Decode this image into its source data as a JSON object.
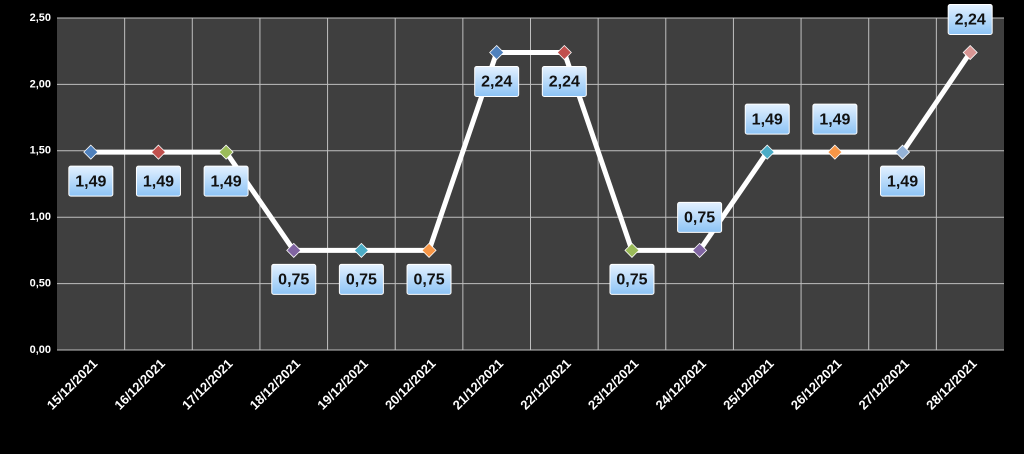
{
  "chart_data": {
    "type": "line",
    "categories": [
      "15/12/2021",
      "16/12/2021",
      "17/12/2021",
      "18/12/2021",
      "19/12/2021",
      "20/12/2021",
      "21/12/2021",
      "22/12/2021",
      "23/12/2021",
      "24/12/2021",
      "25/12/2021",
      "26/12/2021",
      "27/12/2021",
      "28/12/2021"
    ],
    "values": [
      1.49,
      1.49,
      1.49,
      0.75,
      0.75,
      0.75,
      2.24,
      2.24,
      0.75,
      0.75,
      1.49,
      1.49,
      1.49,
      2.24
    ],
    "value_labels": [
      "1,49",
      "1,49",
      "1,49",
      "0,75",
      "0,75",
      "0,75",
      "2,24",
      "2,24",
      "0,75",
      "0,75",
      "1,49",
      "1,49",
      "1,49",
      "2,24"
    ],
    "label_positions": [
      "below",
      "below",
      "below",
      "below",
      "below",
      "below",
      "below",
      "below",
      "below",
      "above",
      "above",
      "above",
      "below",
      "above"
    ],
    "color": "#ffffff",
    "point_colors": [
      "#4f81bd",
      "#c0504d",
      "#9bbb59",
      "#8064a2",
      "#4bacc6",
      "#f79646",
      "#4f81bd",
      "#c0504d",
      "#9bbb59",
      "#8064a2",
      "#4bacc6",
      "#f79646",
      "#95b3d7",
      "#d99694"
    ],
    "ylim": [
      0,
      2.5
    ],
    "yticks": [
      {
        "value": 0,
        "label": "0,00"
      },
      {
        "value": 0.5,
        "label": "0,50"
      },
      {
        "value": 1,
        "label": "1,00"
      },
      {
        "value": 1.5,
        "label": "1,50"
      },
      {
        "value": 2,
        "label": "2,00"
      },
      {
        "value": 2.5,
        "label": "2,50"
      }
    ],
    "grid": true
  }
}
